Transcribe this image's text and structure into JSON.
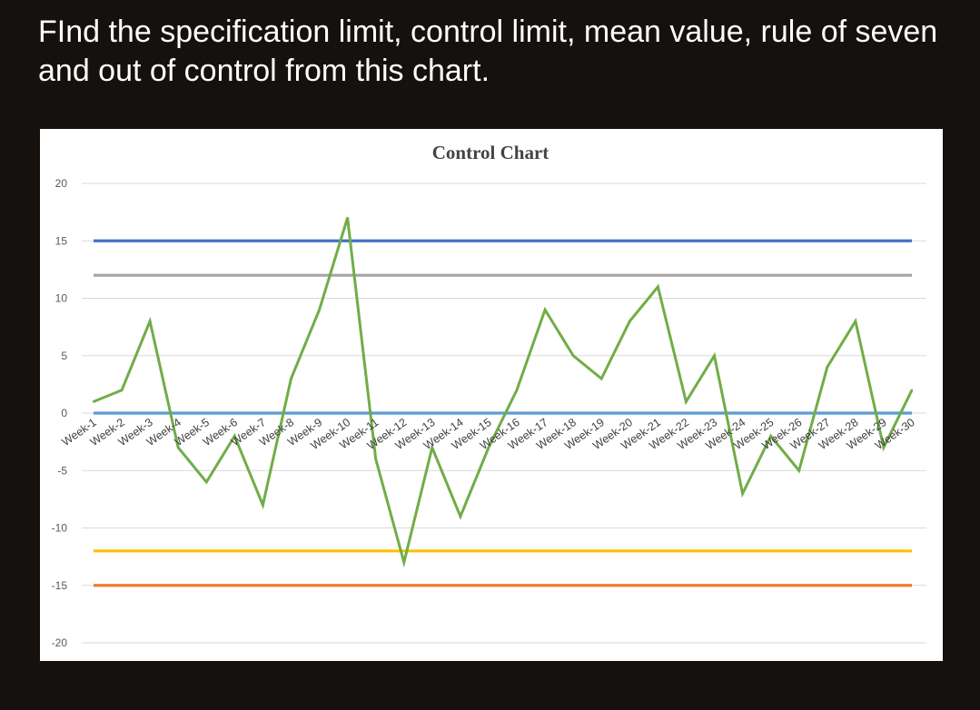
{
  "question": "FInd  the specification limit, control limit, mean value, rule of seven and out of control from this chart.",
  "chart_data": {
    "type": "line",
    "title": "Control Chart",
    "xlabel": "",
    "ylabel": "",
    "ylim": [
      -20,
      20
    ],
    "yticks": [
      20,
      15,
      10,
      5,
      0,
      -5,
      -10,
      -15,
      -20
    ],
    "grid": true,
    "categories": [
      "Week-1",
      "Week-2",
      "Week-3",
      "Week-4",
      "Week-5",
      "Week-6",
      "Week-7",
      "Week-8",
      "Week-9",
      "Week-10",
      "Week-11",
      "Week-12",
      "Week-13",
      "Week-14",
      "Week-15",
      "Week-16",
      "Week-17",
      "Week-18",
      "Week-19",
      "Week-20",
      "Week-21",
      "Week-22",
      "Week-23",
      "Week-24",
      "Week-25",
      "Week-26",
      "Week-27",
      "Week-28",
      "Week-29",
      "Week-30"
    ],
    "series": [
      {
        "color": "#70ad47",
        "values": [
          1,
          2,
          8,
          -3,
          -6,
          -2,
          -8,
          3,
          9,
          17,
          -4,
          -13,
          -3,
          -9,
          -3,
          2,
          9,
          5,
          3,
          8,
          11,
          1,
          5,
          -7,
          -2,
          -5,
          4,
          8,
          -3,
          2
        ]
      }
    ],
    "reference_lines": [
      {
        "value": 15,
        "color": "#4472c4"
      },
      {
        "value": 12,
        "color": "#a5a5a5"
      },
      {
        "value": 0,
        "color": "#5b9bd5"
      },
      {
        "value": -12,
        "color": "#ffc000"
      },
      {
        "value": -15,
        "color": "#ed7d31"
      }
    ]
  }
}
